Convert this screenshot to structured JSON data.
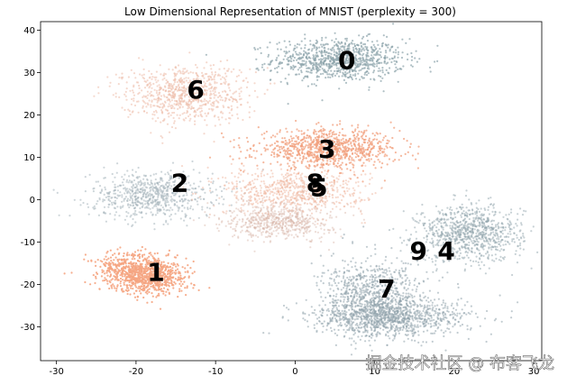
{
  "chart_data": {
    "type": "scatter",
    "title": "Low Dimensional Representation of MNIST (perplexity = 300)",
    "xlabel": "",
    "ylabel": "",
    "xlim": [
      -32,
      31
    ],
    "ylim": [
      -38,
      42
    ],
    "x_ticks": [
      -30,
      -20,
      -10,
      0,
      10,
      20,
      30
    ],
    "y_ticks": [
      -30,
      -20,
      -10,
      0,
      10,
      20,
      30,
      40
    ],
    "grid": false,
    "clusters": [
      {
        "label": "0",
        "label_x": 6.5,
        "label_y": 33,
        "cx": 5.5,
        "cy": 33,
        "sx": 7.5,
        "sy": 4.5,
        "color": "#8fa5ad",
        "alpha": 0.7,
        "density": 900
      },
      {
        "label": "1",
        "label_x": -17.5,
        "label_y": -17,
        "cx": -19,
        "cy": -17.5,
        "sx": 5,
        "sy": 4,
        "color": "#f5a582",
        "alpha": 0.9,
        "density": 1000,
        "angle": -28
      },
      {
        "label": "2",
        "label_x": -14.5,
        "label_y": 4,
        "cx": -18,
        "cy": 1,
        "sx": 7,
        "sy": 5,
        "color": "#a6b5bb",
        "alpha": 0.55,
        "density": 700
      },
      {
        "label": "3",
        "label_x": 4,
        "label_y": 12,
        "cx": 4,
        "cy": 12,
        "sx": 8,
        "sy": 4,
        "color": "#f2a07e",
        "alpha": 0.75,
        "density": 900
      },
      {
        "label": "4",
        "label_x": 19,
        "label_y": -12,
        "cx": 22,
        "cy": -8,
        "sx": 6,
        "sy": 6,
        "color": "#8fa3ab",
        "alpha": 0.5,
        "density": 900
      },
      {
        "label": "5",
        "label_x": 3,
        "label_y": 3,
        "cx": 0,
        "cy": 2,
        "sx": 8,
        "sy": 5,
        "color": "#efb59d",
        "alpha": 0.5,
        "density": 700
      },
      {
        "label": "6",
        "label_x": -12.5,
        "label_y": 26,
        "cx": -14,
        "cy": 25,
        "sx": 7,
        "sy": 6,
        "color": "#efbfae",
        "alpha": 0.6,
        "density": 800
      },
      {
        "label": "7",
        "label_x": 11.5,
        "label_y": -21,
        "cx": 10,
        "cy": -23,
        "sx": 6,
        "sy": 8,
        "color": "#8fa3ab",
        "alpha": 0.55,
        "density": 900
      },
      {
        "label": "8",
        "label_x": 2.5,
        "label_y": 4,
        "cx": -2,
        "cy": -5,
        "sx": 6,
        "sy": 4,
        "color": "#d7b3a7",
        "alpha": 0.45,
        "density": 600
      },
      {
        "label": "9",
        "label_x": 15.5,
        "label_y": -12,
        "cx": 12,
        "cy": -28,
        "sx": 9,
        "sy": 4,
        "color": "#8fa3ab",
        "alpha": 0.55,
        "density": 900
      }
    ]
  },
  "watermark": "掘金技术社区 @ 布客飞龙"
}
